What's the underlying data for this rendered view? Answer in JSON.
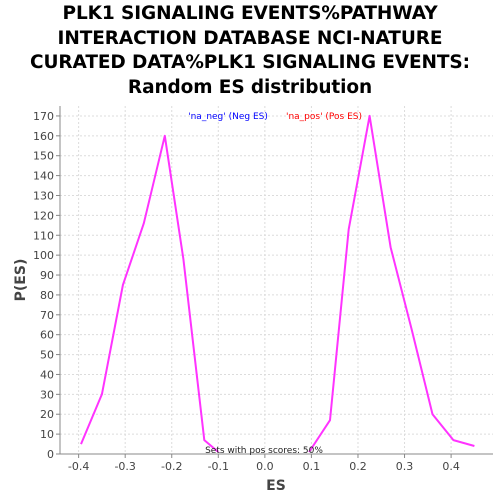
{
  "title_lines": [
    "PLK1 SIGNALING EVENTS%PATHWAY",
    "INTERACTION DATABASE NCI-NATURE",
    "CURATED DATA%PLK1 SIGNALING EVENTS:",
    "Random ES distribution"
  ],
  "chart_data": {
    "type": "line",
    "title": "PLK1 SIGNALING EVENTS%PATHWAY INTERACTION DATABASE NCI-NATURE CURATED DATA%PLK1 SIGNALING EVENTS: Random ES distribution",
    "xlabel": "ES",
    "ylabel": "P(ES)",
    "xlim": [
      -0.44,
      0.49
    ],
    "ylim": [
      0,
      175
    ],
    "x_ticks": [
      -0.4,
      -0.3,
      -0.2,
      -0.1,
      0.0,
      0.1,
      0.2,
      0.3,
      0.4
    ],
    "x_tick_labels": [
      "-0.4",
      "-0.3",
      "-0.2",
      "-0.1",
      "0.0",
      "0.1",
      "0.2",
      "0.3",
      "0.4"
    ],
    "y_ticks": [
      0,
      10,
      20,
      30,
      40,
      50,
      60,
      70,
      80,
      90,
      100,
      110,
      120,
      130,
      140,
      150,
      160,
      170
    ],
    "grid": true,
    "legend_position": "top-center",
    "series": [
      {
        "name": "'na_neg' (Neg ES)",
        "legend_color": "#0000ff",
        "line_color": "#ff33ff",
        "points": [
          [
            -0.395,
            5
          ],
          [
            -0.35,
            30
          ],
          [
            -0.305,
            85
          ],
          [
            -0.26,
            116
          ],
          [
            -0.215,
            160
          ],
          [
            -0.175,
            98
          ],
          [
            -0.13,
            7
          ],
          [
            -0.1,
            1
          ]
        ]
      },
      {
        "name": "'na_pos' (Pos ES)",
        "legend_color": "#ff0000",
        "line_color": "#ff33ff",
        "points": [
          [
            0.095,
            1
          ],
          [
            0.14,
            17
          ],
          [
            0.18,
            113
          ],
          [
            0.225,
            170
          ],
          [
            0.27,
            104
          ],
          [
            0.315,
            63
          ],
          [
            0.36,
            20
          ],
          [
            0.405,
            7
          ],
          [
            0.45,
            4
          ]
        ]
      }
    ],
    "annotation": "Sets with pos scores: 50%"
  }
}
